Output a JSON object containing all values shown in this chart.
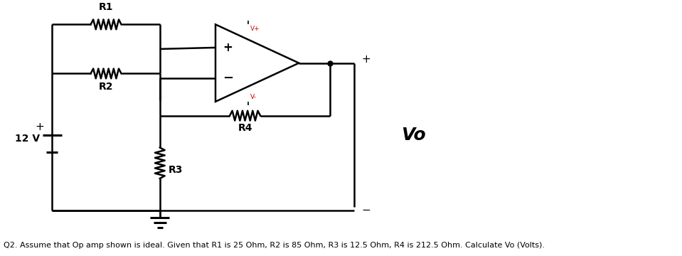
{
  "question_text": "Q2. Assume that Op amp shown is ideal. Given that R1 is 25 Ohm, R2 is 85 Ohm, R3 is 12.5 Ohm, R4 is 212.5 Ohm. Calculate Vo (Volts).",
  "voltage_label": "12 V",
  "R1_label": "R1",
  "R2_label": "R2",
  "R3_label": "R3",
  "R4_label": "R4",
  "Vo_label": "Vo",
  "vplus_label": "V+",
  "vminus_label": "V-",
  "bg_color": "#ffffff",
  "line_color": "#000000",
  "line_width": 1.8,
  "font_size_labels": 10,
  "font_size_question": 8.0,
  "opamp_color": "#000000",
  "vpm_color": "#cc0000"
}
